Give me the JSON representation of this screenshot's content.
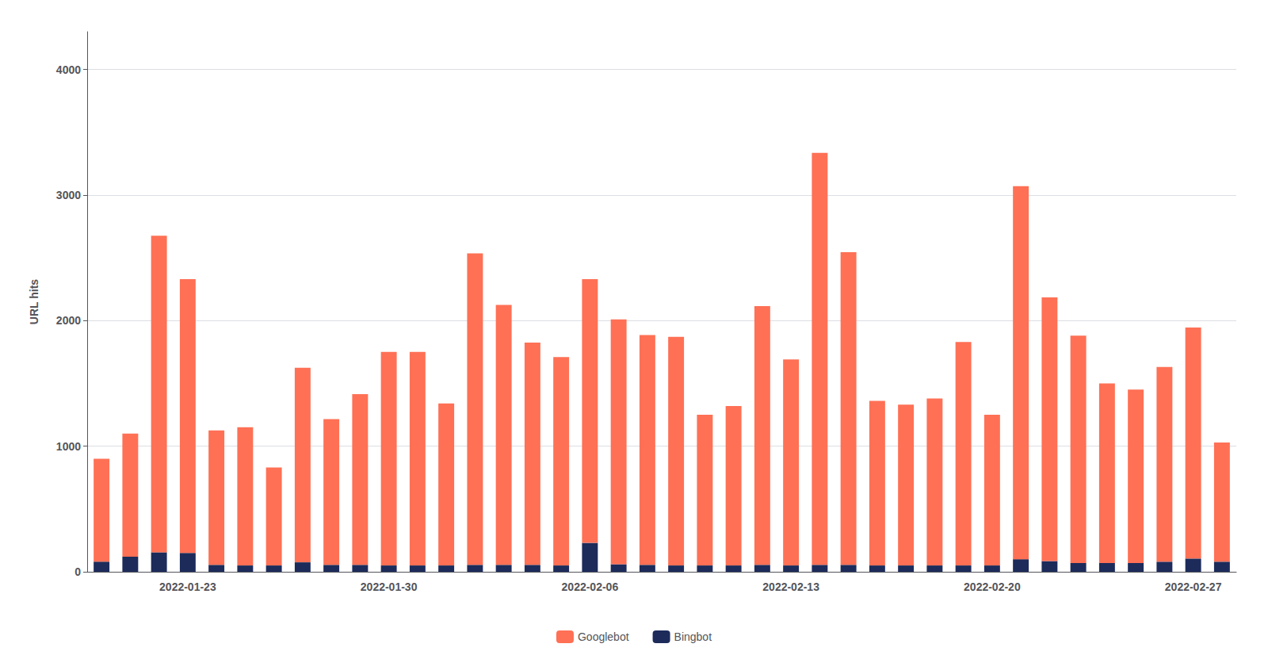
{
  "chart_data": {
    "type": "bar",
    "stacked": true,
    "ylabel": "URL hits",
    "categories": [
      null,
      null,
      null,
      "2022-01-23",
      null,
      null,
      null,
      null,
      null,
      null,
      "2022-01-30",
      null,
      null,
      null,
      null,
      null,
      null,
      "2022-02-06",
      null,
      null,
      null,
      null,
      null,
      null,
      "2022-02-13",
      null,
      null,
      null,
      null,
      null,
      null,
      "2022-02-20",
      null,
      null,
      null,
      null,
      null,
      null,
      "2022-02-27",
      null
    ],
    "series": [
      {
        "name": "Bingbot",
        "color": "#1C2B5A",
        "values": [
          80,
          120,
          155,
          150,
          55,
          50,
          50,
          75,
          55,
          55,
          50,
          50,
          50,
          55,
          55,
          55,
          50,
          230,
          60,
          55,
          50,
          50,
          50,
          55,
          50,
          55,
          55,
          50,
          50,
          50,
          50,
          50,
          100,
          85,
          70,
          70,
          70,
          80,
          105,
          80
        ]
      },
      {
        "name": "Googlebot",
        "color": "#FF7055",
        "values": [
          820,
          980,
          2520,
          2180,
          1070,
          1100,
          780,
          1550,
          1160,
          1360,
          1700,
          1700,
          1290,
          2480,
          2070,
          1770,
          1660,
          2100,
          1950,
          1830,
          1820,
          1200,
          1270,
          2060,
          1640,
          3280,
          2490,
          1310,
          1280,
          1330,
          1780,
          1200,
          2970,
          2100,
          1810,
          1430,
          1380,
          1550,
          1840,
          950
        ]
      }
    ],
    "ylim": [
      0,
      4300
    ],
    "yticks": [
      0,
      1000,
      2000,
      3000,
      4000
    ],
    "grid": true,
    "legend": "bottom"
  }
}
